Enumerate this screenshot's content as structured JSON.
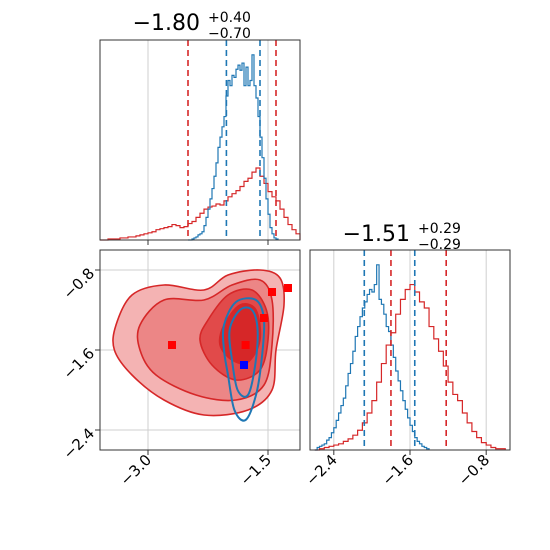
{
  "colors": {
    "red": "#d62728",
    "blue": "#1f77b4",
    "marker_red": "#ff0000",
    "marker_blue": "#0000ff",
    "grid": "#cfcfcf"
  },
  "titles": {
    "p1": {
      "main": "−1.80",
      "sup": "+0.40",
      "sub": "−0.70"
    },
    "p2": {
      "main": "−1.51",
      "sup": "+0.29",
      "sub": "−0.29"
    }
  },
  "chart_data": [
    {
      "type": "histogram",
      "panel": "top-left marginal",
      "xlim": [
        -3.6,
        -1.1
      ],
      "grid": true,
      "series": [
        {
          "color": "red",
          "bins": {
            "start": -3.6,
            "width": 0.05,
            "values": [
              0,
              0,
              1,
              1,
              1,
              2,
              2,
              3,
              3,
              4,
              5,
              6,
              7,
              8,
              10,
              11,
              12,
              13,
              15,
              14,
              12,
              13,
              16,
              18,
              22,
              26,
              30,
              32,
              33,
              35,
              34,
              38,
              42,
              45,
              48,
              52,
              57,
              60,
              66,
              70,
              62,
              55,
              47,
              42,
              38,
              30,
              22,
              15,
              10,
              6
            ]
          }
        },
        {
          "color": "blue",
          "bins": {
            "start": -2.5,
            "width": 0.025,
            "values": [
              0,
              0,
              1,
              2,
              3,
              5,
              6,
              8,
              14,
              22,
              30,
              40,
              50,
              62,
              75,
              90,
              100,
              110,
              120,
              140,
              155,
              150,
              160,
              158,
              166,
              170,
              165,
              172,
              150,
              168,
              150,
              155,
              180,
              150,
              138,
              120,
              100,
              80,
              60,
              40,
              25,
              12,
              6,
              2,
              1
            ]
          }
        }
      ],
      "vlines": [
        {
          "color": "red",
          "x": -2.5
        },
        {
          "color": "red",
          "x": -1.4
        },
        {
          "color": "blue",
          "x": -2.02
        },
        {
          "color": "blue",
          "x": -1.6
        }
      ]
    },
    {
      "type": "histogram",
      "panel": "bottom-right marginal",
      "xlim": [
        -2.65,
        -0.55
      ],
      "xticks": [
        -2.4,
        -1.6,
        -0.8
      ],
      "xtick_labels": [
        "−2.4",
        "−1.6",
        "−0.8"
      ],
      "grid": true,
      "series": [
        {
          "color": "red",
          "bins": {
            "start": -2.6,
            "width": 0.05,
            "values": [
              0,
              1,
              2,
              3,
              4,
              5,
              7,
              9,
              12,
              16,
              22,
              30,
              40,
              55,
              70,
              85,
              95,
              110,
              122,
              130,
              134,
              128,
              120,
              115,
              100,
              90,
              80,
              68,
              55,
              45,
              40,
              30,
              22,
              15,
              10,
              6,
              4,
              2,
              1,
              1
            ]
          }
        },
        {
          "color": "blue",
          "bins": {
            "start": -2.6,
            "width": 0.025,
            "values": [
              0,
              2,
              3,
              4,
              5,
              8,
              10,
              14,
              18,
              24,
              30,
              36,
              42,
              52,
              62,
              70,
              80,
              92,
              100,
              108,
              115,
              120,
              126,
              130,
              128,
              134,
              150,
              122,
              118,
              110,
              100,
              96,
              85,
              75,
              64,
              56,
              48,
              40,
              33,
              26,
              20,
              15,
              10,
              7,
              5,
              3,
              2,
              1
            ]
          }
        }
      ],
      "vlines": [
        {
          "color": "red",
          "x": -1.8
        },
        {
          "color": "red",
          "x": -1.22
        },
        {
          "color": "blue",
          "x": -2.08
        },
        {
          "color": "blue",
          "x": -1.55
        }
      ]
    },
    {
      "type": "contour",
      "panel": "bottom-left joint",
      "xlim": [
        -3.6,
        -1.1
      ],
      "ylim": [
        -2.6,
        -0.6
      ],
      "xticks": [
        -3.0,
        -1.5
      ],
      "xtick_labels": [
        "−3.0",
        "−1.5"
      ],
      "yticks": [
        -0.8,
        -1.6,
        -2.4
      ],
      "ytick_labels": [
        "−0.8",
        "−1.6",
        "−2.4"
      ],
      "grid": true,
      "red_contours": [
        [
          [
            -3.4,
            -1.35
          ],
          [
            -3.2,
            -1.05
          ],
          [
            -2.8,
            -0.95
          ],
          [
            -2.3,
            -1.0
          ],
          [
            -2.0,
            -0.85
          ],
          [
            -1.6,
            -0.8
          ],
          [
            -1.35,
            -0.88
          ],
          [
            -1.3,
            -1.15
          ],
          [
            -1.4,
            -1.6
          ],
          [
            -1.45,
            -2.0
          ],
          [
            -1.75,
            -2.2
          ],
          [
            -2.3,
            -2.25
          ],
          [
            -2.8,
            -2.1
          ],
          [
            -3.2,
            -1.85
          ],
          [
            -3.42,
            -1.6
          ]
        ],
        [
          [
            -3.1,
            -1.35
          ],
          [
            -2.8,
            -1.1
          ],
          [
            -2.3,
            -1.1
          ],
          [
            -1.95,
            -0.95
          ],
          [
            -1.6,
            -0.9
          ],
          [
            -1.45,
            -1.1
          ],
          [
            -1.45,
            -1.55
          ],
          [
            -1.55,
            -1.95
          ],
          [
            -1.9,
            -2.1
          ],
          [
            -2.4,
            -2.05
          ],
          [
            -2.9,
            -1.85
          ],
          [
            -3.1,
            -1.6
          ]
        ],
        [
          [
            -2.25,
            -1.3
          ],
          [
            -2.0,
            -1.05
          ],
          [
            -1.7,
            -1.0
          ],
          [
            -1.52,
            -1.2
          ],
          [
            -1.5,
            -1.5
          ],
          [
            -1.6,
            -1.8
          ],
          [
            -1.9,
            -1.9
          ],
          [
            -2.2,
            -1.75
          ],
          [
            -2.35,
            -1.5
          ]
        ],
        [
          [
            -2.05,
            -1.35
          ],
          [
            -1.85,
            -1.15
          ],
          [
            -1.65,
            -1.2
          ],
          [
            -1.6,
            -1.5
          ],
          [
            -1.75,
            -1.72
          ],
          [
            -1.95,
            -1.7
          ],
          [
            -2.1,
            -1.55
          ]
        ]
      ],
      "blue_contours": [
        [
          [
            -2.05,
            -1.35
          ],
          [
            -1.9,
            -1.12
          ],
          [
            -1.65,
            -1.1
          ],
          [
            -1.55,
            -1.3
          ],
          [
            -1.58,
            -1.7
          ],
          [
            -1.65,
            -2.05
          ],
          [
            -1.78,
            -2.3
          ],
          [
            -1.92,
            -2.2
          ],
          [
            -2.0,
            -1.85
          ],
          [
            -2.05,
            -1.6
          ]
        ],
        [
          [
            -1.98,
            -1.4
          ],
          [
            -1.85,
            -1.2
          ],
          [
            -1.7,
            -1.2
          ],
          [
            -1.63,
            -1.4
          ],
          [
            -1.66,
            -1.75
          ],
          [
            -1.75,
            -2.05
          ],
          [
            -1.88,
            -2.0
          ],
          [
            -1.95,
            -1.7
          ]
        ]
      ],
      "markers": [
        {
          "color": "red",
          "x": -1.25,
          "y": -0.98
        },
        {
          "color": "red",
          "x": -1.45,
          "y": -1.02
        },
        {
          "color": "red",
          "x": -2.7,
          "y": -1.55
        },
        {
          "color": "red",
          "x": -1.78,
          "y": -1.55
        },
        {
          "color": "red",
          "x": -1.55,
          "y": -1.28
        },
        {
          "color": "blue",
          "x": -1.8,
          "y": -1.75
        }
      ]
    }
  ]
}
